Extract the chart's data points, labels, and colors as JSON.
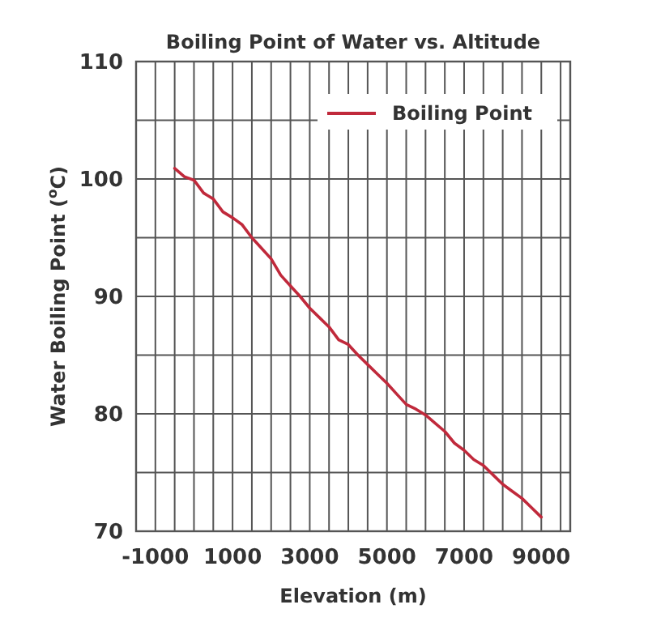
{
  "chart_data": {
    "type": "line",
    "title": "Boiling Point of Water vs. Altitude",
    "xlabel": "Elevation (m)",
    "ylabel": "Water Boiling Point ($^{o}$C)",
    "xlim": [
      -1500,
      9750
    ],
    "ylim": [
      70,
      110
    ],
    "xticks": [
      -1000,
      {
        "value": -500,
        "label": null
      },
      {
        "value": 0,
        "label": null
      },
      {
        "value": 500,
        "label": null
      },
      1000,
      {
        "value": 1500,
        "label": null
      },
      {
        "value": 2000,
        "label": null
      },
      {
        "value": 2500,
        "label": null
      },
      3000,
      {
        "value": 3500,
        "label": null
      },
      {
        "value": 4000,
        "label": null
      },
      {
        "value": 4500,
        "label": null
      },
      5000,
      {
        "value": 5500,
        "label": null
      },
      {
        "value": 6000,
        "label": null
      },
      {
        "value": 6500,
        "label": null
      },
      7000,
      {
        "value": 7500,
        "label": null
      },
      {
        "value": 8000,
        "label": null
      },
      {
        "value": 8500,
        "label": null
      },
      9000,
      {
        "value": 9500,
        "label": null
      }
    ],
    "yticks": [
      70,
      {
        "value": 75,
        "label": null
      },
      80,
      {
        "value": 85,
        "label": null
      },
      90,
      {
        "value": 95,
        "label": null
      },
      100,
      {
        "value": 105,
        "label": null
      },
      110
    ],
    "grid": true,
    "legend": "top right",
    "marker": "none",
    "line_style": "solid",
    "x": [
      -500,
      -250,
      0,
      250,
      500,
      750,
      1000,
      1250,
      1500,
      1750,
      2000,
      2250,
      2500,
      2750,
      3000,
      3250,
      3500,
      3750,
      4000,
      4250,
      4500,
      4750,
      5000,
      5250,
      5500,
      5750,
      6000,
      6250,
      6500,
      6750,
      7000,
      7250,
      7500,
      7750,
      8000,
      8250,
      8500,
      8750,
      9000
    ],
    "series": [
      {
        "name": "Boiling Point",
        "color": "#c0293b",
        "values": [
          100.9,
          100.2,
          99.9,
          98.8,
          98.3,
          97.2,
          96.7,
          96.1,
          95.0,
          94.1,
          93.2,
          91.8,
          90.9,
          90.0,
          89.0,
          88.2,
          87.4,
          86.3,
          85.9,
          85.0,
          84.2,
          83.4,
          82.6,
          81.7,
          80.8,
          80.4,
          79.9,
          79.2,
          78.5,
          77.5,
          76.9,
          76.1,
          75.6,
          74.8,
          74.0,
          73.4,
          72.8,
          72.0,
          71.2
        ]
      }
    ]
  }
}
